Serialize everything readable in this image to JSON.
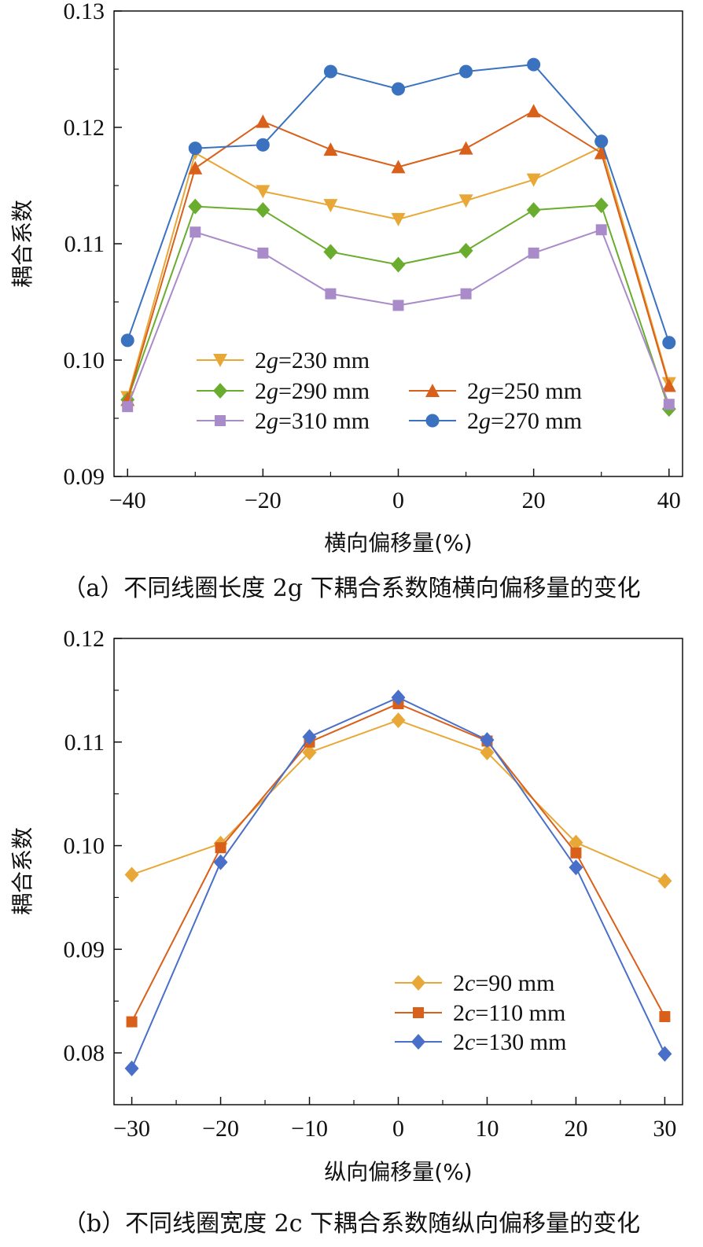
{
  "chart_data": [
    {
      "type": "line",
      "caption": "（a）不同线圈长度 2g 下耦合系数随横向偏移量的变化",
      "xlabel": "横向偏移量(%)",
      "ylabel": "耦合系数",
      "xlim": [
        -42,
        42
      ],
      "ylim": [
        0.09,
        0.13
      ],
      "xticks": [
        -40,
        -20,
        0,
        20,
        40
      ],
      "yticks": [
        0.09,
        0.1,
        0.11,
        0.12,
        0.13
      ],
      "tick_labels_x": [
        "−40",
        "−20",
        "0",
        "20",
        "40"
      ],
      "tick_labels_y": [
        "0.09",
        "0.10",
        "0.11",
        "0.12",
        "0.13"
      ],
      "legend_position": "bottom-left",
      "x": [
        -40,
        -30,
        -20,
        -10,
        0,
        10,
        20,
        30,
        40
      ],
      "series": [
        {
          "name": "2g=230 mm",
          "color": "#E8A838",
          "marker": "triangle-down",
          "values": [
            0.0968,
            0.1178,
            0.1145,
            0.1133,
            0.1121,
            0.1137,
            0.1155,
            0.1183,
            0.098
          ]
        },
        {
          "name": "2g=290 mm",
          "color": "#6AAD2E",
          "marker": "diamond",
          "values": [
            0.0966,
            0.1132,
            0.1129,
            0.1093,
            0.1082,
            0.1094,
            0.1129,
            0.1133,
            0.0958
          ]
        },
        {
          "name": "2g=250 mm",
          "color": "#D9601A",
          "marker": "triangle-up",
          "values": [
            0.0966,
            0.1165,
            0.1205,
            0.1181,
            0.1166,
            0.1182,
            0.1214,
            0.1178,
            0.0978
          ]
        },
        {
          "name": "2g=310 mm",
          "color": "#A98BC9",
          "marker": "square",
          "values": [
            0.096,
            0.111,
            0.1092,
            0.1057,
            0.1047,
            0.1057,
            0.1092,
            0.1112,
            0.0962
          ]
        },
        {
          "name": "2g=270 mm",
          "color": "#3A72C0",
          "marker": "circle",
          "values": [
            0.1017,
            0.1182,
            0.1185,
            0.1248,
            0.1233,
            0.1248,
            0.1254,
            0.1188,
            0.1015
          ]
        }
      ]
    },
    {
      "type": "line",
      "caption": "（b）不同线圈宽度 2c 下耦合系数随纵向偏移量的变化",
      "xlabel": "纵向偏移量(%)",
      "ylabel": "耦合系数",
      "xlim": [
        -32,
        32
      ],
      "ylim": [
        0.075,
        0.12
      ],
      "xticks": [
        -30,
        -20,
        -10,
        0,
        10,
        20,
        30
      ],
      "yticks": [
        0.08,
        0.09,
        0.1,
        0.11,
        0.12
      ],
      "tick_labels_x": [
        "−30",
        "−20",
        "−10",
        "0",
        "10",
        "20",
        "30"
      ],
      "tick_labels_y": [
        "0.08",
        "0.09",
        "0.10",
        "0.11",
        "0.12"
      ],
      "legend_position": "bottom-right",
      "x": [
        -30,
        -20,
        -10,
        0,
        10,
        20,
        30
      ],
      "series": [
        {
          "name": "2c=90 mm",
          "color": "#E8A838",
          "marker": "diamond",
          "values": [
            0.0972,
            0.1002,
            0.109,
            0.1121,
            0.109,
            0.1003,
            0.0966
          ]
        },
        {
          "name": "2c=110 mm",
          "color": "#D9601A",
          "marker": "square",
          "values": [
            0.083,
            0.0998,
            0.11,
            0.1137,
            0.1101,
            0.0993,
            0.0835
          ]
        },
        {
          "name": "2c=130 mm",
          "color": "#4A6FC8",
          "marker": "diamond",
          "values": [
            0.0785,
            0.0984,
            0.1105,
            0.1143,
            0.1102,
            0.0979,
            0.0799
          ]
        }
      ]
    }
  ]
}
